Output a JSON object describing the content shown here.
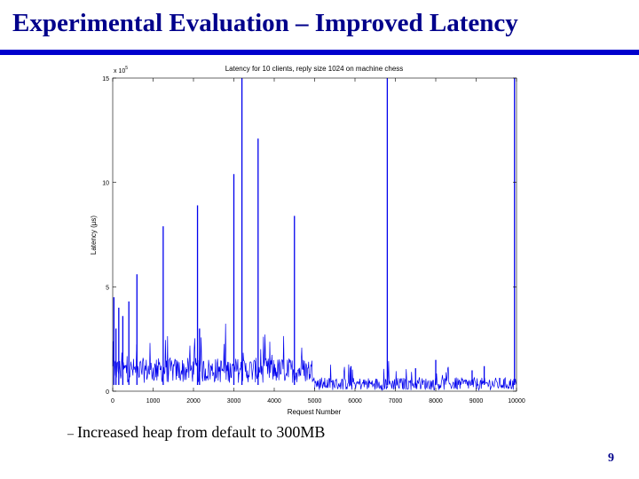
{
  "slide": {
    "title": "Experimental Evaluation – Improved Latency",
    "bullet_marker": "–",
    "bullet_text": "Increased heap from default to 300MB",
    "page_number": "9"
  },
  "colors": {
    "title": "#00008b",
    "rule": "#0000cd",
    "series": "#0000ee"
  },
  "chart_data": {
    "type": "line",
    "title": "Latency for 10 clients, reply size 1024 on machine chess",
    "xlabel": "Request Number",
    "ylabel": "Latency (µs)",
    "y_multiplier_label": "x 10",
    "y_multiplier_exp": "5",
    "xlim": [
      0,
      10000
    ],
    "ylim": [
      0,
      15
    ],
    "xticks": [
      0,
      1000,
      2000,
      3000,
      4000,
      5000,
      6000,
      7000,
      8000,
      9000,
      10000
    ],
    "yticks": [
      0,
      5,
      10,
      15
    ],
    "grid": false,
    "series": [
      {
        "baseline_segments": [
          {
            "x_start": 0,
            "x_end": 5000,
            "level": 1.0,
            "noise": 0.6
          },
          {
            "x_start": 5000,
            "x_end": 10000,
            "level": 0.35,
            "noise": 0.3
          }
        ],
        "spikes": [
          {
            "x": 30,
            "y": 4.5
          },
          {
            "x": 80,
            "y": 3.0
          },
          {
            "x": 150,
            "y": 4.0
          },
          {
            "x": 250,
            "y": 3.6
          },
          {
            "x": 400,
            "y": 4.3
          },
          {
            "x": 600,
            "y": 5.6
          },
          {
            "x": 1250,
            "y": 7.9
          },
          {
            "x": 2100,
            "y": 8.9
          },
          {
            "x": 2150,
            "y": 3.0
          },
          {
            "x": 3000,
            "y": 10.4
          },
          {
            "x": 3200,
            "y": 15.0
          },
          {
            "x": 3600,
            "y": 12.1
          },
          {
            "x": 4500,
            "y": 8.4
          },
          {
            "x": 6800,
            "y": 15.0
          },
          {
            "x": 9950,
            "y": 15.0
          },
          {
            "x": 5900,
            "y": 1.2
          },
          {
            "x": 7500,
            "y": 1.1
          },
          {
            "x": 8000,
            "y": 1.5
          },
          {
            "x": 8900,
            "y": 1.0
          },
          {
            "x": 9200,
            "y": 1.2
          }
        ]
      }
    ]
  }
}
